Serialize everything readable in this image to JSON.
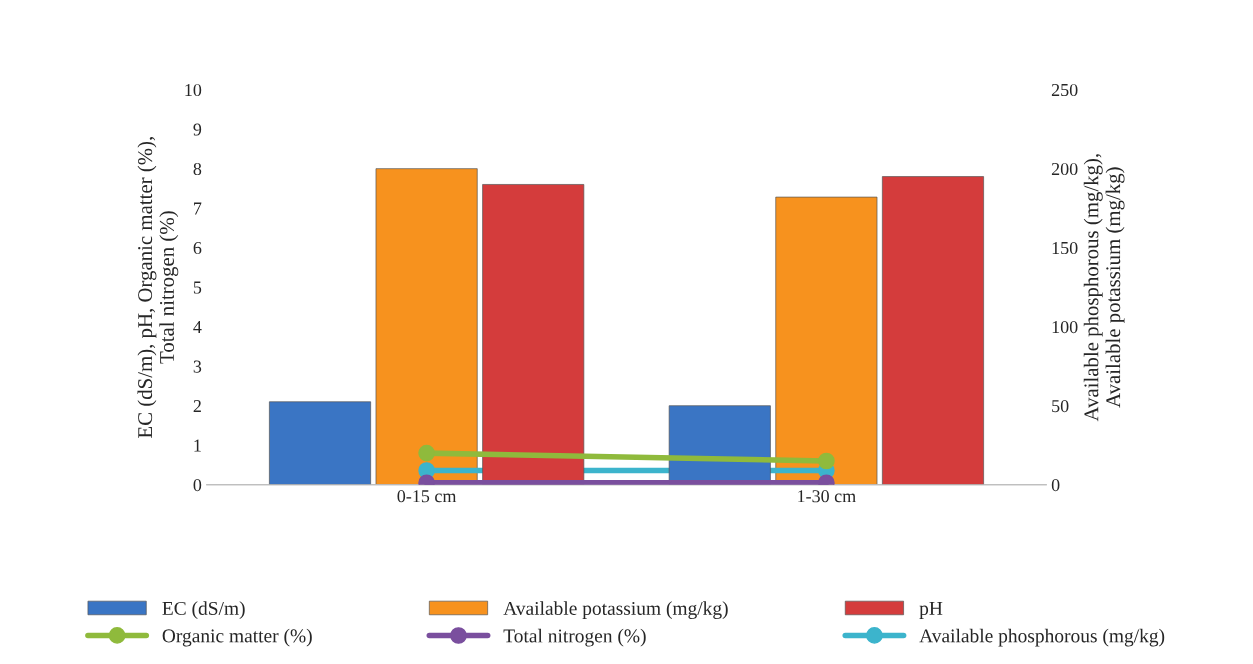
{
  "chart_data": {
    "type": "bar",
    "categories": [
      "0-15 cm",
      "1-30 cm"
    ],
    "ylabel": "EC (dS/m), pH, Organic matter (%),\nTotal nitrogen (%)",
    "y2label": "Available phosphorous (mg/kg),\nAvailable potassium (mg/kg)",
    "ylim": [
      0,
      10
    ],
    "yticks": [
      0,
      1,
      2,
      3,
      4,
      5,
      6,
      7,
      8,
      9,
      10
    ],
    "y2lim": [
      0,
      250
    ],
    "y2ticks": [
      0,
      50,
      100,
      150,
      200,
      250
    ],
    "grid": false,
    "legend": "bottom",
    "marker": "circle",
    "series": [
      {
        "name": "EC (dS/m)",
        "color": "#3a75c4",
        "values": [
          2.1,
          2.0
        ]
      },
      {
        "name": "Available potassium (mg/kg)",
        "axis": "y2",
        "color": "#f7921e",
        "values": [
          200,
          182
        ]
      },
      {
        "name": "pH",
        "color": "#d43c3c",
        "values": [
          7.6,
          7.8
        ]
      },
      {
        "name": "Organic matter (%)",
        "type": "line",
        "color": "#8fba3c",
        "values": [
          0.8,
          0.6
        ]
      },
      {
        "name": "Total nitrogen (%)",
        "type": "line",
        "color": "#7a4f9e",
        "values": [
          0.05,
          0.05
        ]
      },
      {
        "name": "Available phosphorous (mg/kg)",
        "type": "line",
        "axis": "y2",
        "color": "#3cb4cc",
        "values": [
          9,
          9
        ]
      }
    ]
  }
}
